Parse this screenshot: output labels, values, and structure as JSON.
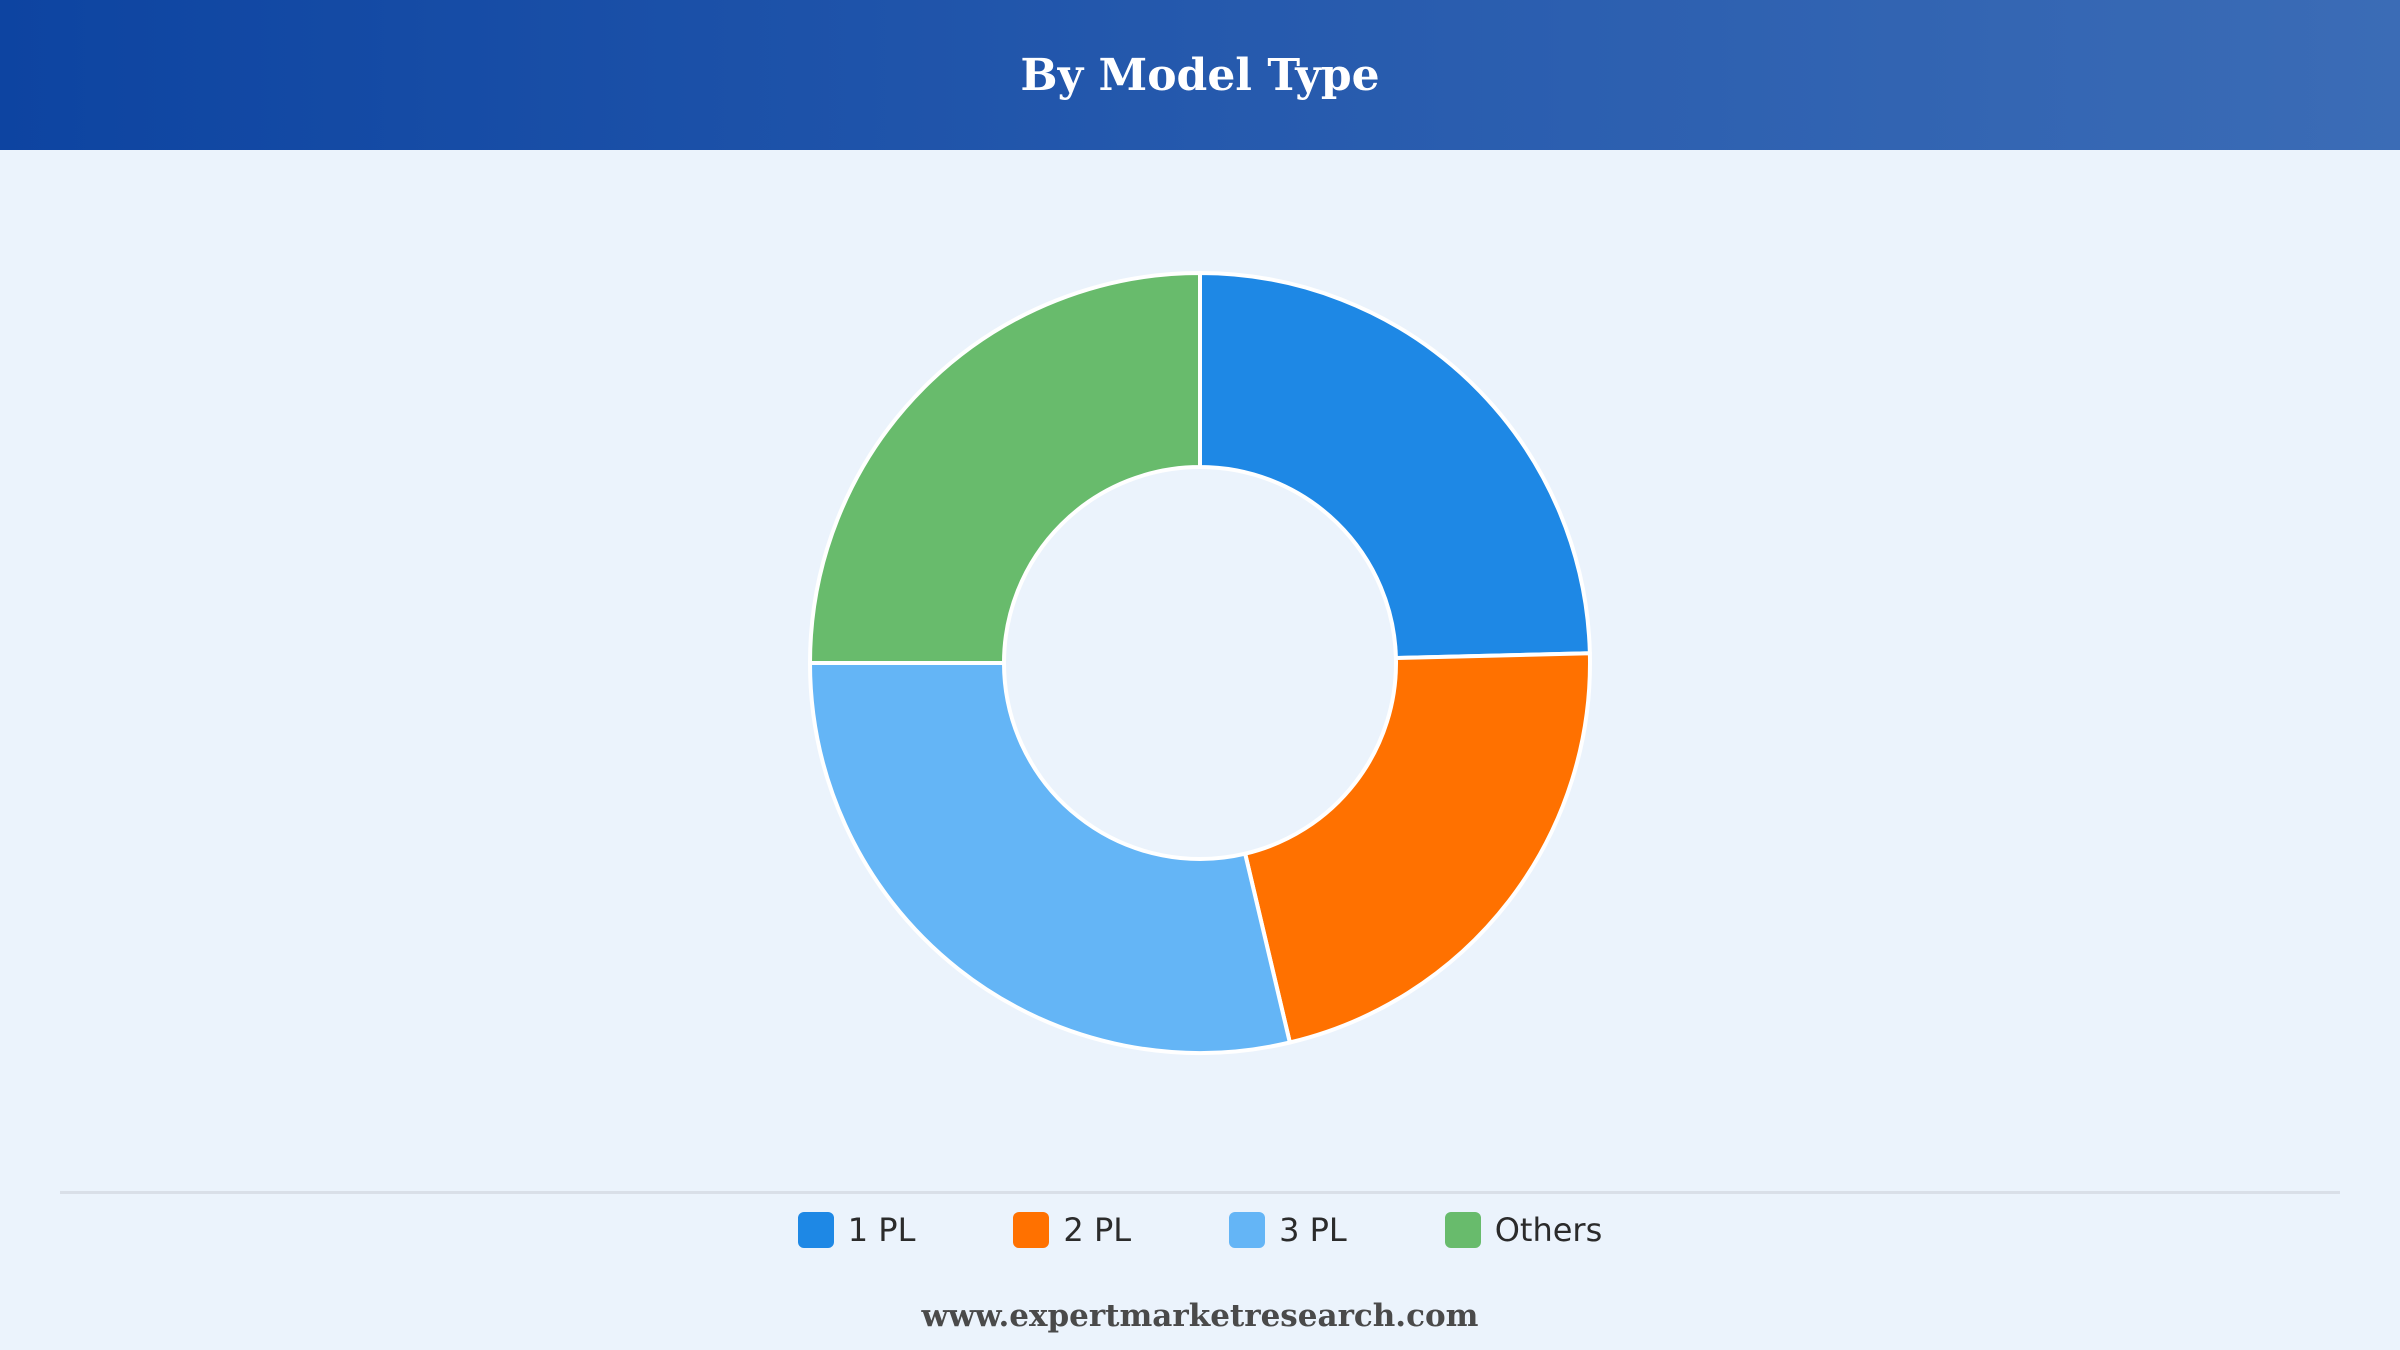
{
  "header": {
    "title": "By Model Type"
  },
  "chart_data": {
    "type": "pie",
    "variant": "donut",
    "categories": [
      "1 PL",
      "2 PL",
      "3 PL",
      "Others"
    ],
    "values": [
      24.6,
      21.7,
      28.7,
      25.0
    ],
    "colors": [
      "#1e88e5",
      "#ff7100",
      "#64b5f6",
      "#68bb6c"
    ],
    "legend_position": "bottom"
  },
  "footer": {
    "source_text": "www.expertmarketresearch.com"
  }
}
